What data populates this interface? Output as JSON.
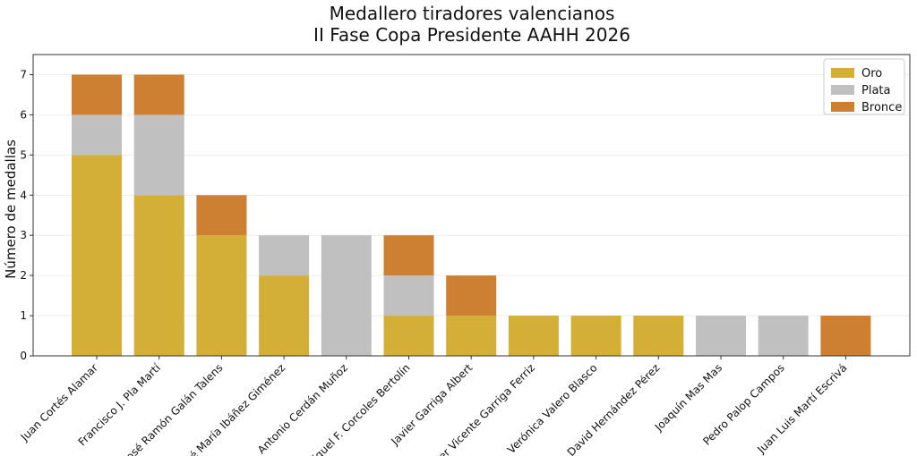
{
  "chart_data": {
    "type": "bar",
    "stacked": true,
    "title": "Medallero tiradores valencianos",
    "subtitle": "II Fase Copa Presidente AAHH 2026",
    "xlabel": "",
    "ylabel": "Número de medallas",
    "ylim": [
      0,
      7.5
    ],
    "yticks": [
      "0",
      "1",
      "2",
      "3",
      "4",
      "5",
      "6",
      "7"
    ],
    "grid": "horizontal",
    "legend_position": "top-right",
    "categories": [
      "Juan Cortés Alamar",
      "Francisco J. Pla Martí",
      "José Ramón Galán Talens",
      "José María Ibáñez Giménez",
      "Antonio Cerdán Muñoz",
      "Miguel F. Corcoles Bertolín",
      "Javier Garriga Albert",
      "Javier Vicente Garriga Ferriz",
      "Verónica Valero Blasco",
      "David Hernández Pérez",
      "Joaquín Mas Mas",
      "Pedro Palop Campos",
      "Juan Luis Martí Escrivá"
    ],
    "series": [
      {
        "name": "Oro",
        "color": "#D4AF37",
        "values": [
          5,
          4,
          3,
          2,
          0,
          1,
          1,
          1,
          1,
          1,
          0,
          0,
          0
        ]
      },
      {
        "name": "Plata",
        "color": "#C0C0C0",
        "values": [
          1,
          2,
          0,
          1,
          3,
          1,
          0,
          0,
          0,
          0,
          1,
          1,
          0
        ]
      },
      {
        "name": "Bronce",
        "color": "#CD7F32",
        "values": [
          1,
          1,
          1,
          0,
          0,
          1,
          1,
          0,
          0,
          0,
          0,
          0,
          1
        ]
      }
    ]
  }
}
